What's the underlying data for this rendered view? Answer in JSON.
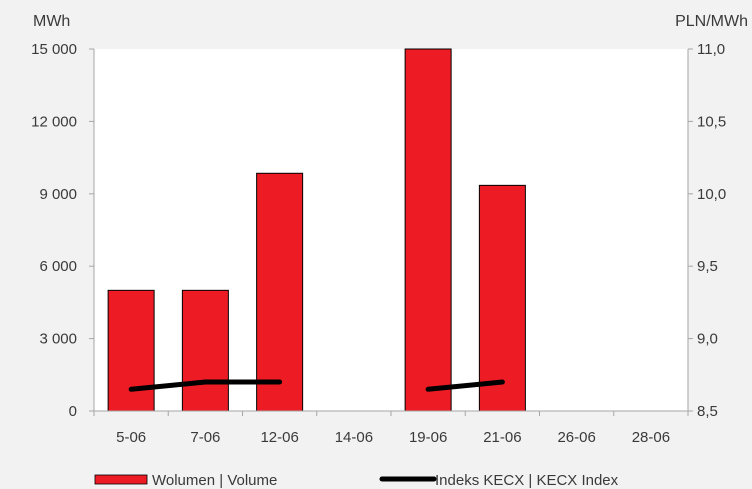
{
  "chart_data": {
    "type": "bar",
    "categories": [
      "5-06",
      "7-06",
      "12-06",
      "14-06",
      "19-06",
      "21-06",
      "26-06",
      "28-06"
    ],
    "left_axis": {
      "unit_label": "MWh",
      "ylim": [
        0,
        15000
      ],
      "ticks": [
        0,
        3000,
        6000,
        9000,
        12000,
        15000
      ],
      "tick_labels": [
        "0",
        "3 000",
        "6 000",
        "9 000",
        "12 000",
        "15 000"
      ]
    },
    "right_axis": {
      "unit_label": "PLN/MWh",
      "ylim": [
        8.5,
        11.0
      ],
      "ticks": [
        8.5,
        9.0,
        9.5,
        10.0,
        10.5,
        11.0
      ],
      "tick_labels": [
        "8,5",
        "9,0",
        "9,5",
        "10,0",
        "10,5",
        "11,0"
      ]
    },
    "series": [
      {
        "name": "Wolumen | Volume",
        "type": "bar",
        "axis": "left",
        "color": "#ed1c24",
        "values": [
          5000,
          5000,
          9850,
          null,
          15000,
          9350,
          null,
          null
        ]
      },
      {
        "name": "Indeks KECX | KECX Index",
        "type": "line",
        "axis": "right",
        "color": "#000000",
        "values": [
          8.65,
          8.7,
          8.7,
          null,
          8.65,
          8.7,
          null,
          null
        ]
      }
    ],
    "legend_position": "bottom",
    "grid": false
  }
}
